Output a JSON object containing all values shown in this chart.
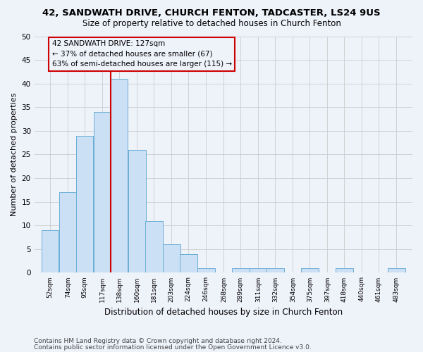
{
  "title1": "42, SANDWATH DRIVE, CHURCH FENTON, TADCASTER, LS24 9US",
  "title2": "Size of property relative to detached houses in Church Fenton",
  "xlabel": "Distribution of detached houses by size in Church Fenton",
  "ylabel": "Number of detached properties",
  "footer1": "Contains HM Land Registry data © Crown copyright and database right 2024.",
  "footer2": "Contains public sector information licensed under the Open Government Licence v3.0.",
  "annotation_line1": "42 SANDWATH DRIVE: 127sqm",
  "annotation_line2": "← 37% of detached houses are smaller (67)",
  "annotation_line3": "63% of semi-detached houses are larger (115) →",
  "bin_labels": [
    "52sqm",
    "74sqm",
    "95sqm",
    "117sqm",
    "138sqm",
    "160sqm",
    "181sqm",
    "203sqm",
    "224sqm",
    "246sqm",
    "268sqm",
    "289sqm",
    "311sqm",
    "332sqm",
    "354sqm",
    "375sqm",
    "397sqm",
    "418sqm",
    "440sqm",
    "461sqm",
    "483sqm"
  ],
  "bar_values": [
    9,
    17,
    29,
    34,
    41,
    26,
    11,
    6,
    4,
    1,
    0,
    1,
    1,
    1,
    0,
    1,
    0,
    1,
    0,
    0,
    1
  ],
  "bar_color": "#cce0f5",
  "bar_edge_color": "#6aaed6",
  "redline_x": 127,
  "ylim": [
    0,
    50
  ],
  "yticks": [
    0,
    5,
    10,
    15,
    20,
    25,
    30,
    35,
    40,
    45,
    50
  ],
  "grid_color": "#cccccc",
  "redline_color": "#cc0000",
  "annotation_box_edgecolor": "#cc0000",
  "bg_color": "#eef2f9",
  "title1_fontsize": 9.5,
  "title2_fontsize": 8.5,
  "ylabel_fontsize": 8,
  "xlabel_fontsize": 8.5,
  "footer_fontsize": 6.5,
  "ann_fontsize": 7.5
}
